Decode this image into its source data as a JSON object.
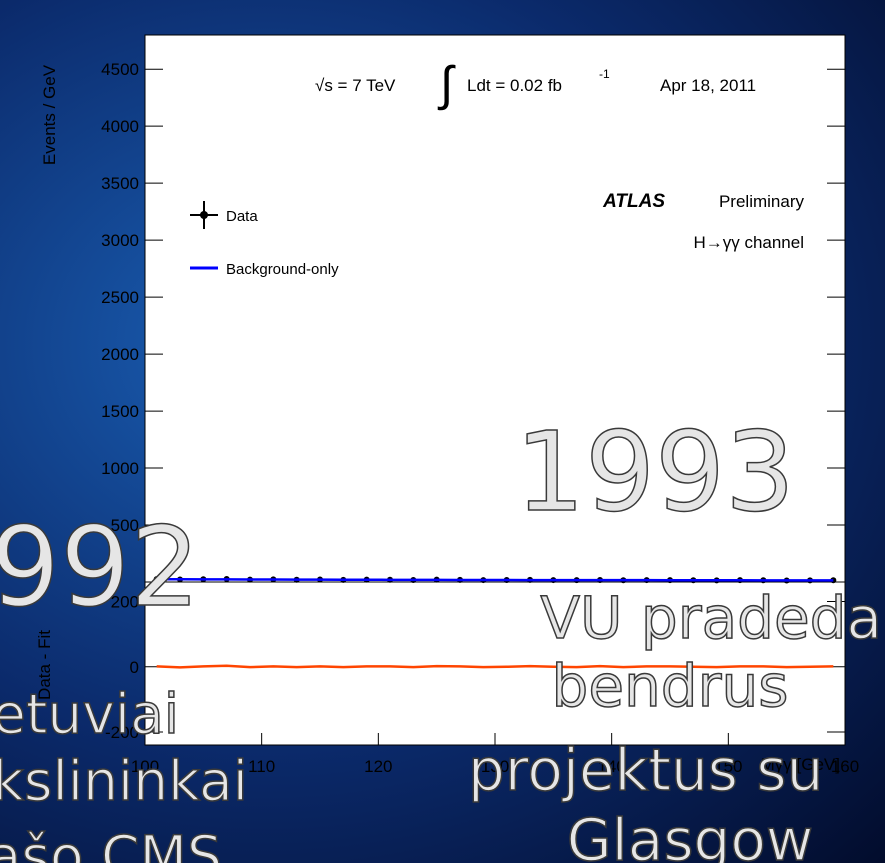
{
  "chart_data": [
    {
      "type": "line",
      "y_label": "Events / GeV",
      "annotations": {
        "sqrt_s": "√s = 7 TeV",
        "integral": "∫",
        "lumi": "Ldt = 0.02 fb",
        "lumi_exp": "-1",
        "date": "Apr 18, 2011",
        "experiment": "ATLAS",
        "status": "Preliminary",
        "channel": "H→γγ channel"
      },
      "xlim": [
        100,
        160
      ],
      "ylim": [
        0,
        4800
      ],
      "yticks": [
        500,
        1000,
        1500,
        2000,
        2500,
        3000,
        3500,
        4000,
        4500
      ],
      "series": [
        {
          "name": "Data",
          "color": "#000000",
          "x": [
            101,
            103,
            105,
            107,
            109,
            111,
            113,
            115,
            117,
            119,
            121,
            123,
            125,
            127,
            129,
            131,
            133,
            135,
            137,
            139,
            141,
            143,
            145,
            147,
            149,
            151,
            153,
            155,
            157,
            159
          ],
          "values": [
            25,
            22,
            24,
            26,
            21,
            23,
            20,
            22,
            19,
            21,
            20,
            18,
            21,
            19,
            17,
            18,
            19,
            17,
            16,
            18,
            15,
            17,
            16,
            15,
            14,
            16,
            15,
            13,
            14,
            15
          ]
        },
        {
          "name": "Background-only",
          "color": "#0000ff",
          "x": [
            101,
            103,
            105,
            107,
            109,
            111,
            113,
            115,
            117,
            119,
            121,
            123,
            125,
            127,
            129,
            131,
            133,
            135,
            137,
            139,
            141,
            143,
            145,
            147,
            149,
            151,
            153,
            155,
            157,
            159
          ],
          "values": [
            24,
            24,
            23,
            23,
            22,
            22,
            21,
            21,
            20,
            20,
            19,
            19,
            19,
            18,
            18,
            18,
            17,
            17,
            17,
            16,
            16,
            16,
            15,
            15,
            15,
            15,
            14,
            14,
            14,
            14
          ]
        }
      ]
    },
    {
      "type": "line",
      "y_label": "Data - Fit",
      "x_label": "Mγγ [GeV]",
      "xlim": [
        100,
        160
      ],
      "xticks": [
        100,
        110,
        120,
        130,
        140,
        150,
        160
      ],
      "ylim": [
        -240,
        260
      ],
      "yticks": [
        -200,
        0,
        200
      ],
      "series": [
        {
          "color": "#ff4500",
          "x": [
            101,
            103,
            105,
            107,
            109,
            111,
            113,
            115,
            117,
            119,
            121,
            123,
            125,
            127,
            129,
            131,
            133,
            135,
            137,
            139,
            141,
            143,
            145,
            147,
            149,
            151,
            153,
            155,
            157,
            159
          ],
          "values": [
            1,
            -2,
            1,
            3,
            -1,
            1,
            -1,
            1,
            -1,
            1,
            1,
            -1,
            2,
            1,
            -1,
            0,
            2,
            0,
            -1,
            2,
            -1,
            1,
            1,
            0,
            -1,
            1,
            1,
            -1,
            0,
            1
          ]
        }
      ]
    }
  ],
  "overlay": {
    "year_right": "1993",
    "year_left": "992",
    "line_1": "VU pradeda",
    "line_2": "bendrus",
    "line_3": "projektus su",
    "line_4": "Glasgow",
    "left_1": "etuviai",
    "left_2": "kslininkai",
    "left_3": "rašo CMS"
  }
}
